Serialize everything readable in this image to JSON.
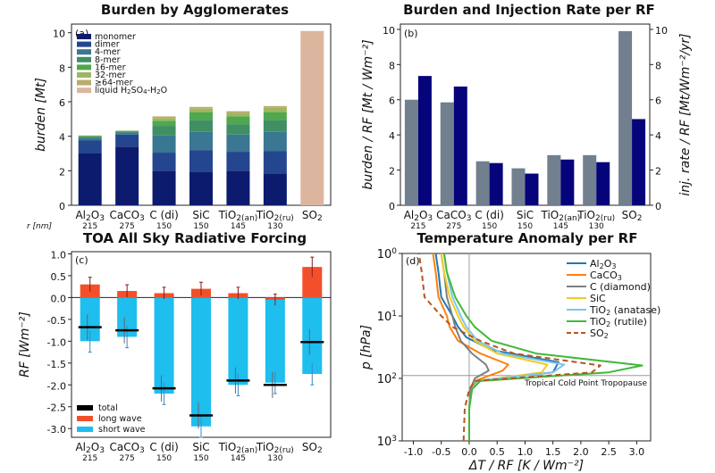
{
  "colors": {
    "monomer": "#0c1b6e",
    "dimer": "#24468e",
    "mer4": "#3a7792",
    "mer8": "#3f8f63",
    "mer16": "#4fa84d",
    "mer32": "#9fb660",
    "mer64": "#b9ad6c",
    "liquid": "#dcb59e",
    "burden_grey": "#717f8e",
    "inj_navy": "#06047a",
    "inj_axis": "#1c2fa0",
    "burden_axis": "#2e5a4c",
    "lw": "#f2502a",
    "sw": "#1ebeee",
    "total": "#000000",
    "err": "#8b1a1a",
    "err_sw": "#3d88c8",
    "al": "#1f77b4",
    "caco": "#ff7f0e",
    "cdia": "#7f7f7f",
    "sic": "#f2cc22",
    "tian": "#7cc6ec",
    "tiru": "#42b83a",
    "so2": "#b8551f"
  },
  "chart_data": [
    {
      "id": "a",
      "type": "bar",
      "stacked": true,
      "panel_label": "(a)",
      "title": "Burden by Agglomerates",
      "ylabel": "burden [Mt]",
      "ylim": [
        0,
        10.5
      ],
      "yticks": [
        "0",
        "2",
        "4",
        "6",
        "8",
        "10"
      ],
      "categories": [
        "Al2O3",
        "CaCO3",
        "C (di)",
        "SiC",
        "TiO2(an)",
        "TiO2(ru)",
        "SO2"
      ],
      "radii": [
        "215",
        "275",
        "150",
        "150",
        "145",
        "130",
        ""
      ],
      "radius_prefix": "r [nm]",
      "series": [
        {
          "name": "monomer",
          "values": [
            3.0,
            3.4,
            2.0,
            1.95,
            2.0,
            1.85,
            0
          ]
        },
        {
          "name": "dimer",
          "values": [
            0.75,
            0.7,
            1.05,
            1.25,
            1.1,
            1.3,
            0
          ]
        },
        {
          "name": "4-mer",
          "values": [
            0.15,
            0.12,
            1.0,
            1.05,
            1.0,
            1.1,
            0
          ]
        },
        {
          "name": "8-mer",
          "values": [
            0.08,
            0.06,
            0.55,
            0.7,
            0.6,
            0.7,
            0
          ]
        },
        {
          "name": "16-mer",
          "values": [
            0.04,
            0.03,
            0.3,
            0.45,
            0.45,
            0.45,
            0
          ]
        },
        {
          "name": "32-mer",
          "values": [
            0.02,
            0.01,
            0.15,
            0.2,
            0.2,
            0.25,
            0
          ]
        },
        {
          "name": "≥64-mer",
          "values": [
            0.01,
            0.01,
            0.1,
            0.1,
            0.1,
            0.1,
            0
          ]
        },
        {
          "name": "liquid H2SO4-H2O",
          "values": [
            0,
            0,
            0,
            0,
            0,
            0,
            10.1
          ]
        }
      ]
    },
    {
      "id": "b",
      "type": "bar",
      "panel_label": "(b)",
      "title": "Burden and Injection Rate per RF",
      "ylabel_left": "burden / RF [Mt / Wm⁻²]",
      "ylabel_right": "inj. rate / RF [Mt/Wm⁻²/yr]",
      "ylim": [
        0,
        10.3
      ],
      "yticks": [
        "0",
        "2",
        "4",
        "6",
        "8",
        "10"
      ],
      "categories": [
        "Al2O3",
        "CaCO3",
        "C (di)",
        "SiC",
        "TiO2(an)",
        "TiO2(ru)",
        "SO2"
      ],
      "radii": [
        "215",
        "275",
        "150",
        "150",
        "145",
        "130",
        ""
      ],
      "radius_prefix": "r [nm]",
      "series": [
        {
          "name": "burden / RF",
          "values": [
            6.0,
            5.85,
            2.5,
            2.1,
            2.85,
            2.85,
            9.9
          ]
        },
        {
          "name": "inj. rate / RF",
          "values": [
            7.35,
            6.75,
            2.4,
            1.8,
            2.6,
            2.45,
            4.9
          ]
        }
      ]
    },
    {
      "id": "c",
      "type": "bar",
      "panel_label": "(c)",
      "title": "TOA All Sky Radiative Forcing",
      "ylabel": "RF [Wm⁻²]",
      "ylim": [
        -3.2,
        1.05
      ],
      "yticks": [
        "1.0",
        "0.5",
        "0.0",
        "-0.5",
        "-1.0",
        "-1.5",
        "-2.0",
        "-2.5",
        "-3.0"
      ],
      "categories": [
        "Al2O3",
        "CaCO3",
        "C (di)",
        "SiC",
        "TiO2(an)",
        "TiO2(ru)",
        "SO2"
      ],
      "radii": [
        "215",
        "275",
        "150",
        "150",
        "145",
        "130",
        ""
      ],
      "radius_prefix": "r [nm]",
      "legend": {
        "total": "total",
        "long": "long wave",
        "short": "short wave",
        "placement": "lower-left"
      },
      "series": [
        {
          "name": "long wave",
          "values": [
            0.3,
            0.15,
            0.1,
            0.2,
            0.1,
            -0.05,
            0.7
          ]
        },
        {
          "name": "short wave",
          "values": [
            -1.0,
            -0.9,
            -2.2,
            -2.95,
            -2.0,
            -1.95,
            -1.75
          ]
        },
        {
          "name": "total",
          "values": [
            -0.68,
            -0.75,
            -2.08,
            -2.7,
            -1.9,
            -2.0,
            -1.02
          ]
        }
      ]
    },
    {
      "id": "d",
      "type": "line",
      "panel_label": "(d)",
      "title": "Temperature Anomaly per RF",
      "xlabel": "ΔT / RF [K / Wm⁻²]",
      "ylabel": "p [hPa]",
      "xlim": [
        -1.2,
        3.25
      ],
      "ylim_log": [
        1000,
        1
      ],
      "xticks": [
        -1.0,
        -0.5,
        0.0,
        0.5,
        1.0,
        1.5,
        2.0,
        2.5,
        3.0
      ],
      "xtick_labels": [
        "-1.0",
        "-0.5",
        "0.0",
        "0.5",
        "1.0",
        "1.5",
        "2.0",
        "2.5",
        "3.0"
      ],
      "yticks": [
        {
          "label": "100",
          "p": 1
        },
        {
          "label": "101",
          "p": 10
        },
        {
          "label": "102",
          "p": 100
        },
        {
          "label": "103",
          "p": 1000
        }
      ],
      "annotation": "Tropical Cold Point Tropopause",
      "tropopause_p": 90,
      "series": [
        {
          "name": "Al2O3",
          "color_key": "al",
          "dashed": false,
          "x": [
            0.0,
            0.0,
            0.05,
            0.1,
            1.5,
            1.6,
            0.4,
            -0.05,
            -0.2,
            -0.3,
            -0.5,
            -0.55,
            -0.6
          ],
          "p": [
            1000,
            300,
            150,
            110,
            80,
            55,
            35,
            22,
            15,
            10,
            5,
            2,
            1
          ]
        },
        {
          "name": "CaCO3",
          "color_key": "caco",
          "dashed": false,
          "x": [
            0.0,
            0.0,
            0.05,
            0.1,
            0.6,
            0.7,
            0.2,
            -0.2,
            -0.35,
            -0.4,
            -0.55,
            -0.6,
            -0.65
          ],
          "p": [
            1000,
            300,
            150,
            110,
            75,
            60,
            40,
            25,
            15,
            10,
            5,
            2,
            1
          ]
        },
        {
          "name": "C (diamond)",
          "color_key": "cdia",
          "dashed": false,
          "x": [
            0.0,
            0.0,
            0.02,
            0.1,
            0.35,
            0.3,
            0.05,
            -0.15,
            -0.25,
            -0.3,
            -0.4,
            -0.45,
            -0.5
          ],
          "p": [
            1000,
            300,
            150,
            100,
            75,
            60,
            40,
            25,
            15,
            10,
            5,
            2,
            1
          ]
        },
        {
          "name": "SiC",
          "color_key": "sic",
          "dashed": false,
          "x": [
            0.0,
            0.0,
            0.05,
            0.15,
            1.3,
            1.4,
            0.5,
            0.1,
            -0.1,
            -0.2,
            -0.35,
            -0.45,
            -0.5
          ],
          "p": [
            1000,
            300,
            150,
            110,
            80,
            60,
            40,
            25,
            15,
            10,
            5,
            2,
            1
          ]
        },
        {
          "name": "TiO2 (anatase)",
          "color_key": "tian",
          "dashed": false,
          "x": [
            0.0,
            0.0,
            0.05,
            0.15,
            1.5,
            1.7,
            0.6,
            0.15,
            -0.05,
            -0.15,
            -0.3,
            -0.4,
            -0.45
          ],
          "p": [
            1000,
            300,
            150,
            110,
            80,
            60,
            40,
            25,
            15,
            10,
            5,
            2,
            1
          ]
        },
        {
          "name": "TiO2 (rutile)",
          "color_key": "tiru",
          "dashed": false,
          "x": [
            0.0,
            0.0,
            0.05,
            0.2,
            2.5,
            3.1,
            1.2,
            0.4,
            0.1,
            -0.05,
            -0.25,
            -0.4,
            -0.45
          ],
          "p": [
            1000,
            300,
            150,
            110,
            80,
            62,
            40,
            25,
            15,
            10,
            5,
            2,
            1
          ]
        },
        {
          "name": "SO2",
          "color_key": "so2",
          "dashed": true,
          "x": [
            -0.1,
            -0.08,
            0.0,
            0.1,
            2.2,
            2.35,
            0.8,
            0.2,
            -0.3,
            -0.5,
            -0.8,
            -0.85,
            -0.9
          ],
          "p": [
            1000,
            300,
            150,
            110,
            80,
            62,
            40,
            25,
            15,
            10,
            5,
            2,
            1
          ]
        }
      ]
    }
  ]
}
